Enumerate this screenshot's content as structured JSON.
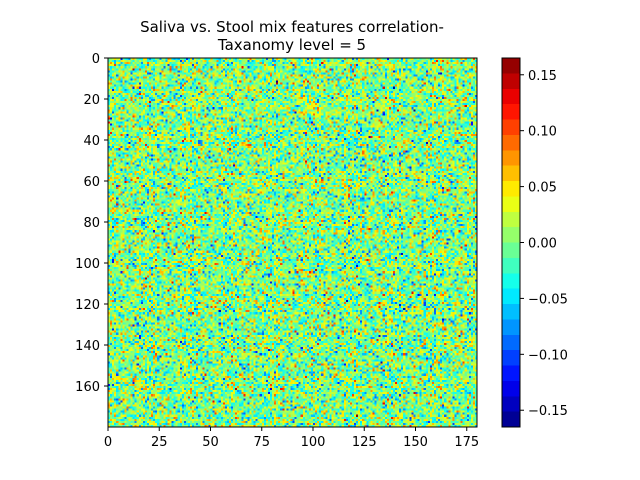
{
  "chart_data": {
    "type": "heatmap",
    "title_lines": [
      "Saliva vs. Stool mix features correlation-",
      "Taxanomy level = 5"
    ],
    "rows": 180,
    "cols": 180,
    "x_range": [
      0,
      180
    ],
    "y_range": [
      0,
      180
    ],
    "y_inverted": true,
    "x_ticks": [
      0,
      25,
      50,
      75,
      100,
      125,
      150,
      175
    ],
    "y_ticks": [
      0,
      20,
      40,
      60,
      80,
      100,
      120,
      140,
      160
    ],
    "colormap": "jet",
    "color_range": [
      -0.165,
      0.165
    ],
    "colorbar_levels": 24,
    "colorbar_ticks": [
      {
        "value": 0.15,
        "label": "0.15"
      },
      {
        "value": 0.1,
        "label": "0.10"
      },
      {
        "value": 0.05,
        "label": "0.05"
      },
      {
        "value": 0.0,
        "label": "0.00"
      },
      {
        "value": -0.05,
        "label": "−0.05"
      },
      {
        "value": -0.1,
        "label": "−0.10"
      },
      {
        "value": -0.15,
        "label": "−0.15"
      }
    ],
    "value_distribution": {
      "mean": 0.0,
      "std": 0.04
    }
  }
}
